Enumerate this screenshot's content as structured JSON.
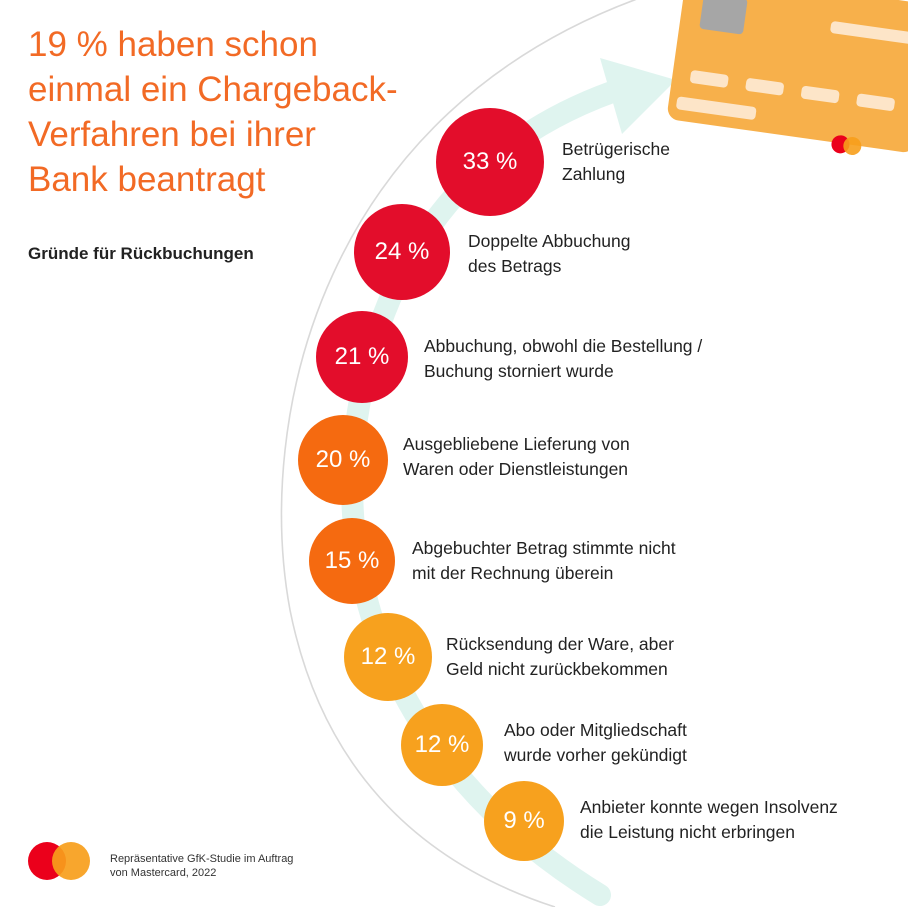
{
  "title_lines": [
    "19 % haben schon",
    "einmal ein Chargeback-",
    "Verfahren bei ihrer",
    "Bank beantragt"
  ],
  "subtitle": "Gründe für Rückbuchungen",
  "source_lines": [
    "Repräsentative GfK-Studie im Auftrag",
    "von Mastercard, 2022"
  ],
  "colors": {
    "accent": "#f26a25",
    "red": "#e30d2b",
    "orange": "#f56a10",
    "amber": "#f7a11e",
    "card": "#f7b04b",
    "arrow": "#dff4ef",
    "mastercard_red": "#eb001b",
    "mastercard_yellow": "#f79e1b"
  },
  "icons": [
    "credit-card-icon",
    "mastercard-logo-icon",
    "curved-arrow-icon"
  ],
  "chart_data": {
    "type": "bar",
    "unit": "%",
    "categories": [
      "Betrügerische Zahlung",
      "Doppelte Abbuchung des Betrags",
      "Abbuchung, obwohl die Bestellung / Buchung storniert wurde",
      "Ausgebliebene Lieferung von Waren oder Dienstleistungen",
      "Abgebuchter Betrag stimmte nicht mit der Rechnung überein",
      "Rücksendung der Ware, aber Geld nicht zurückbekommen",
      "Abo oder Mitgliedschaft wurde vorher gekündigt",
      "Anbieter konnte wegen Insolvenz die Leistung nicht erbringen"
    ],
    "values": [
      33,
      24,
      21,
      20,
      15,
      12,
      12,
      9
    ],
    "items": [
      {
        "value": 33,
        "value_label": "33 %",
        "lines": [
          "Betrügerische",
          "Zahlung"
        ],
        "color": "#e30d2b"
      },
      {
        "value": 24,
        "value_label": "24 %",
        "lines": [
          "Doppelte Abbuchung",
          "des Betrags"
        ],
        "color": "#e30d2b"
      },
      {
        "value": 21,
        "value_label": "21 %",
        "lines": [
          "Abbuchung, obwohl die Bestellung /",
          "Buchung storniert wurde"
        ],
        "color": "#e30d2b"
      },
      {
        "value": 20,
        "value_label": "20 %",
        "lines": [
          "Ausgebliebene Lieferung von",
          "Waren oder Dienstleistungen"
        ],
        "color": "#f56a10"
      },
      {
        "value": 15,
        "value_label": "15 %",
        "lines": [
          "Abgebuchter Betrag stimmte nicht",
          "mit der Rechnung überein"
        ],
        "color": "#f56a10"
      },
      {
        "value": 12,
        "value_label": "12 %",
        "lines": [
          "Rücksendung der Ware, aber",
          "Geld nicht zurückbekommen"
        ],
        "color": "#f7a11e"
      },
      {
        "value": 12,
        "value_label": "12 %",
        "lines": [
          "Abo oder Mitgliedschaft",
          "wurde vorher gekündigt"
        ],
        "color": "#f7a11e"
      },
      {
        "value": 9,
        "value_label": "9 %",
        "lines": [
          "Anbieter konnte wegen Insolvenz",
          "die Leistung nicht erbringen"
        ],
        "color": "#f7a11e"
      }
    ]
  }
}
